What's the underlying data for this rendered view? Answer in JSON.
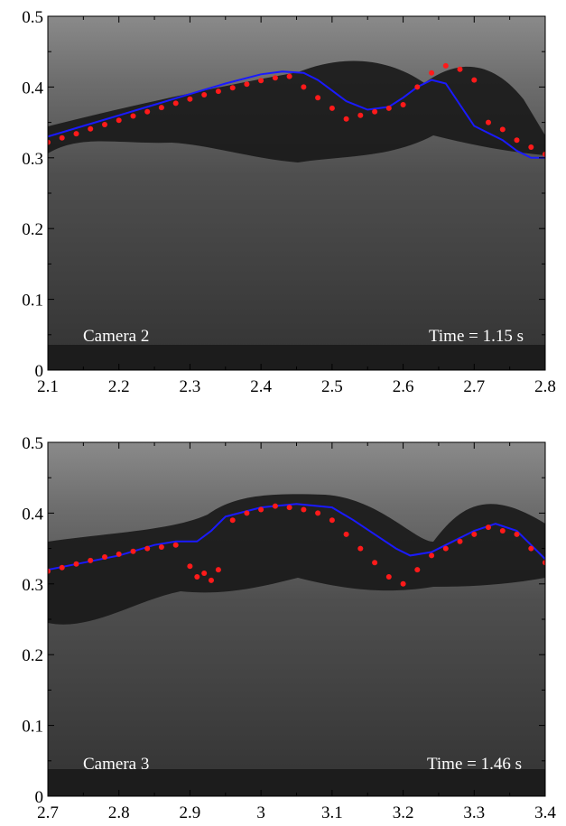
{
  "chart_data": [
    {
      "type": "scatter",
      "overlay_left": "Camera 2",
      "overlay_right": "Time = 1.15 s",
      "xlim": [
        2.1,
        2.8
      ],
      "ylim": [
        0,
        0.5
      ],
      "x_ticks": [
        2.1,
        2.2,
        2.3,
        2.4,
        2.5,
        2.6,
        2.7,
        2.8
      ],
      "x_tick_labels": [
        "2.1",
        "2.2",
        "2.3",
        "2.4",
        "2.5",
        "2.6",
        "2.7",
        "2.8"
      ],
      "y_ticks": [
        0,
        0.1,
        0.2,
        0.3,
        0.4,
        0.5
      ],
      "y_tick_labels": [
        "0",
        "0.1",
        "0.2",
        "0.3",
        "0.4",
        "0.5"
      ],
      "grid": false,
      "series": [
        {
          "kind": "line",
          "color": "#1a1aff",
          "x": [
            2.1,
            2.15,
            2.2,
            2.25,
            2.3,
            2.35,
            2.4,
            2.43,
            2.46,
            2.48,
            2.5,
            2.52,
            2.55,
            2.58,
            2.6,
            2.62,
            2.64,
            2.66,
            2.68,
            2.7,
            2.72,
            2.74,
            2.76,
            2.78,
            2.8
          ],
          "y": [
            0.33,
            0.345,
            0.36,
            0.375,
            0.39,
            0.405,
            0.418,
            0.422,
            0.42,
            0.41,
            0.395,
            0.38,
            0.368,
            0.372,
            0.385,
            0.4,
            0.41,
            0.405,
            0.375,
            0.345,
            0.335,
            0.325,
            0.31,
            0.3,
            0.3
          ]
        },
        {
          "kind": "points",
          "color": "#ff1a1a",
          "x": [
            2.1,
            2.12,
            2.14,
            2.16,
            2.18,
            2.2,
            2.22,
            2.24,
            2.26,
            2.28,
            2.3,
            2.32,
            2.34,
            2.36,
            2.38,
            2.4,
            2.42,
            2.44,
            2.46,
            2.48,
            2.5,
            2.52,
            2.54,
            2.56,
            2.58,
            2.6,
            2.62,
            2.64,
            2.66,
            2.68,
            2.7,
            2.72,
            2.74,
            2.76,
            2.78,
            2.8
          ],
          "y": [
            0.322,
            0.328,
            0.334,
            0.341,
            0.347,
            0.353,
            0.359,
            0.365,
            0.371,
            0.377,
            0.383,
            0.389,
            0.394,
            0.399,
            0.404,
            0.409,
            0.413,
            0.415,
            0.4,
            0.385,
            0.37,
            0.355,
            0.36,
            0.365,
            0.37,
            0.375,
            0.4,
            0.42,
            0.43,
            0.425,
            0.41,
            0.35,
            0.34,
            0.325,
            0.315,
            0.305
          ]
        }
      ]
    },
    {
      "type": "scatter",
      "overlay_left": "Camera 3",
      "overlay_right": "Time = 1.46 s",
      "xlim": [
        2.7,
        3.4
      ],
      "ylim": [
        0,
        0.5
      ],
      "x_ticks": [
        2.7,
        2.8,
        2.9,
        3.0,
        3.1,
        3.2,
        3.3,
        3.4
      ],
      "x_tick_labels": [
        "2.7",
        "2.8",
        "2.9",
        "3",
        "3.1",
        "3.2",
        "3.3",
        "3.4"
      ],
      "y_ticks": [
        0,
        0.1,
        0.2,
        0.3,
        0.4,
        0.5
      ],
      "y_tick_labels": [
        "0",
        "0.1",
        "0.2",
        "0.3",
        "0.4",
        "0.5"
      ],
      "grid": false,
      "series": [
        {
          "kind": "line",
          "color": "#1a1aff",
          "x": [
            2.7,
            2.75,
            2.8,
            2.85,
            2.88,
            2.91,
            2.93,
            2.95,
            3.0,
            3.05,
            3.1,
            3.13,
            3.16,
            3.19,
            3.21,
            3.24,
            3.27,
            3.3,
            3.33,
            3.36,
            3.38,
            3.4
          ],
          "y": [
            0.32,
            0.33,
            0.34,
            0.355,
            0.36,
            0.36,
            0.375,
            0.395,
            0.408,
            0.413,
            0.408,
            0.39,
            0.37,
            0.35,
            0.34,
            0.345,
            0.36,
            0.375,
            0.385,
            0.375,
            0.355,
            0.335
          ]
        },
        {
          "kind": "points",
          "color": "#ff1a1a",
          "x": [
            2.7,
            2.72,
            2.74,
            2.76,
            2.78,
            2.8,
            2.82,
            2.84,
            2.86,
            2.88,
            2.9,
            2.91,
            2.92,
            2.93,
            2.94,
            2.96,
            2.98,
            3.0,
            3.02,
            3.04,
            3.06,
            3.08,
            3.1,
            3.12,
            3.14,
            3.16,
            3.18,
            3.2,
            3.22,
            3.24,
            3.26,
            3.28,
            3.3,
            3.32,
            3.34,
            3.36,
            3.38,
            3.4
          ],
          "y": [
            0.318,
            0.323,
            0.328,
            0.333,
            0.338,
            0.342,
            0.346,
            0.35,
            0.352,
            0.355,
            0.325,
            0.31,
            0.315,
            0.305,
            0.32,
            0.39,
            0.4,
            0.405,
            0.41,
            0.408,
            0.405,
            0.4,
            0.39,
            0.37,
            0.35,
            0.33,
            0.31,
            0.3,
            0.32,
            0.34,
            0.35,
            0.36,
            0.37,
            0.38,
            0.375,
            0.37,
            0.35,
            0.33
          ]
        }
      ]
    }
  ]
}
